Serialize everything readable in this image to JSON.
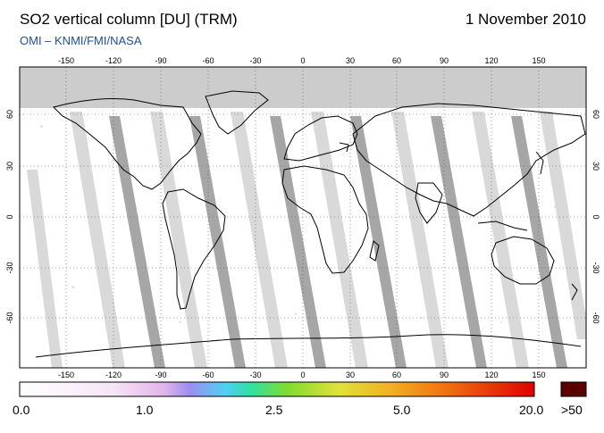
{
  "header": {
    "title": "SO2 vertical column [DU] (TRM)",
    "date": "1 November 2010",
    "credit": "OMI  –  KNMI/FMI/NASA"
  },
  "map": {
    "lon_ticks": [
      "-150",
      "-120",
      "-90",
      "-60",
      "-30",
      "0",
      "30",
      "60",
      "90",
      "120",
      "150"
    ],
    "lat_ticks": [
      "60",
      "30",
      "0",
      "-30",
      "-60"
    ],
    "colors": {
      "frame": "#000000",
      "polar_night": "#cccccc",
      "swath_light": "#d9d9d9",
      "swath_dark": "#a0a0a0",
      "coast": "#000000"
    }
  },
  "colorbar": {
    "labels": [
      "0.0",
      "1.0",
      "2.5",
      "5.0",
      "20.0",
      ">50"
    ],
    "overflow_color": "#5a0000"
  }
}
